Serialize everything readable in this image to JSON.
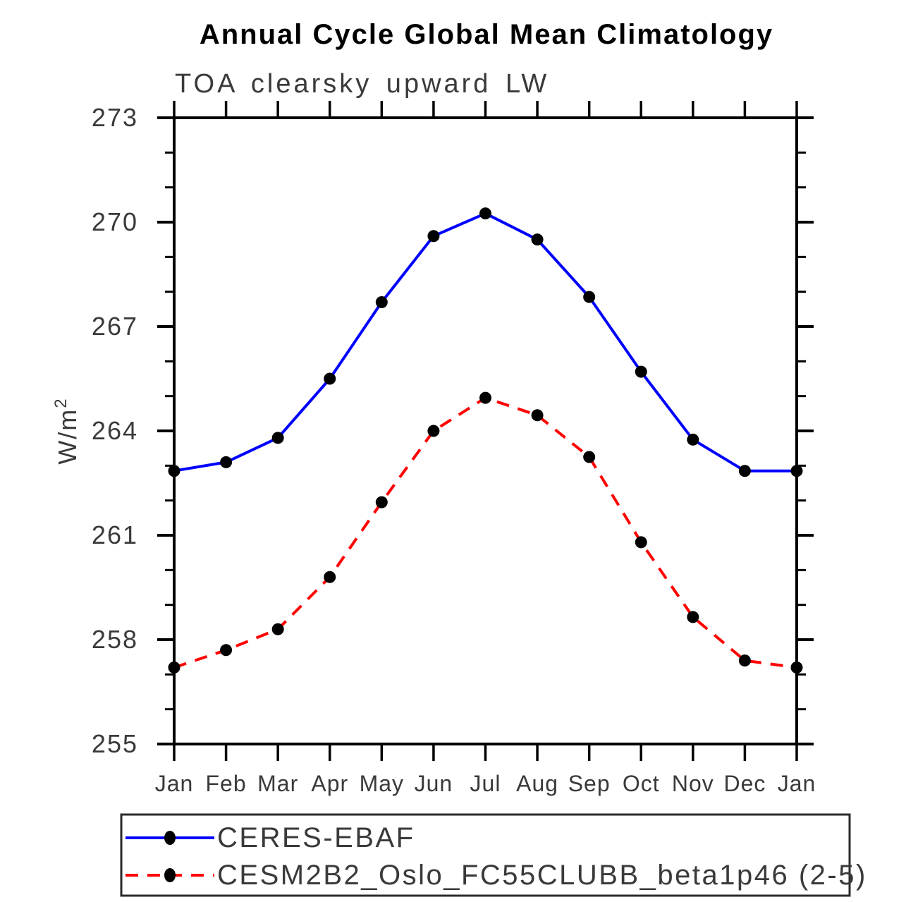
{
  "title": "Annual Cycle Global Mean Climatology",
  "subtitle": "TOA clearsky upward LW",
  "y_axis": {
    "label_base": "W/m",
    "label_exponent": "2",
    "tick_labels": [
      "255",
      "258",
      "261",
      "264",
      "267",
      "270",
      "273"
    ]
  },
  "x_axis": {
    "tick_labels": [
      "Jan",
      "Feb",
      "Mar",
      "Apr",
      "May",
      "Jun",
      "Jul",
      "Aug",
      "Sep",
      "Oct",
      "Nov",
      "Dec",
      "Jan"
    ]
  },
  "chart_data": {
    "type": "line",
    "title": "Annual Cycle Global Mean Climatology",
    "subtitle": "TOA clearsky upward LW",
    "xlabel": "",
    "ylabel": "W/m^2",
    "categories": [
      "Jan",
      "Feb",
      "Mar",
      "Apr",
      "May",
      "Jun",
      "Jul",
      "Aug",
      "Sep",
      "Oct",
      "Nov",
      "Dec",
      "Jan"
    ],
    "ylim": [
      255,
      273
    ],
    "yticks_major": [
      255,
      258,
      261,
      264,
      267,
      270,
      273
    ],
    "ytick_minor_interval": 1,
    "grid": false,
    "legend_position": "bottom-left-box",
    "series": [
      {
        "name": "CERES-EBAF",
        "color": "#0000ff",
        "line_style": "solid",
        "marker": "filled-black-circle",
        "values": [
          262.85,
          263.1,
          263.8,
          265.5,
          267.7,
          269.6,
          270.25,
          269.5,
          267.85,
          265.7,
          263.75,
          262.85,
          262.85
        ]
      },
      {
        "name": "CESM2B2_Oslo_FC55CLUBB_beta1p46 (2-5)",
        "color": "#ff0000",
        "line_style": "dashed",
        "marker": "filled-black-circle",
        "values": [
          257.2,
          257.7,
          258.3,
          259.8,
          261.95,
          264.0,
          264.95,
          264.45,
          263.25,
          260.8,
          258.65,
          257.4,
          257.2
        ]
      }
    ]
  },
  "legend": {
    "items": [
      {
        "label": "CERES-EBAF",
        "color": "#0000ff",
        "line_style": "solid",
        "marker": "black-dot"
      },
      {
        "label": "CESM2B2_Oslo_FC55CLUBB_beta1p46 (2-5)",
        "color": "#ff0000",
        "line_style": "dashed",
        "marker": "black-dot"
      }
    ]
  },
  "colors": {
    "series1": "#0000ff",
    "series2": "#ff0000",
    "marker": "#000000",
    "axis": "#000000",
    "text": "#3a3a3a",
    "background": "#ffffff"
  }
}
